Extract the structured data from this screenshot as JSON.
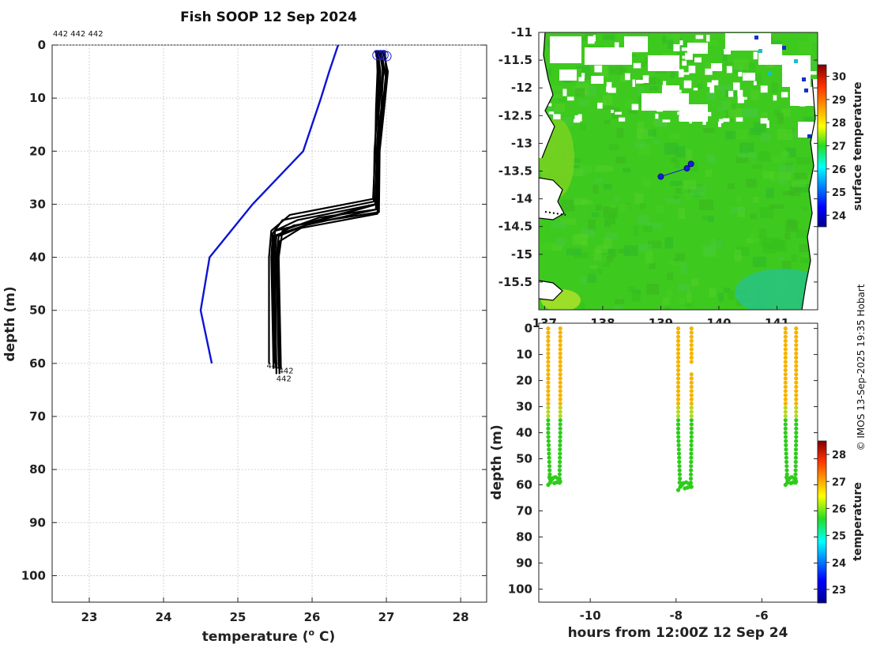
{
  "title": "Fish SOOP 12 Sep 2024",
  "profile_ids_label": "442 442 442",
  "copyright": "© IMOS 13-Sep-2025 19:35 Hobart",
  "colors": {
    "climatology": "#0b14d6",
    "profiles": "#000000",
    "grid": "#c8c8c8",
    "marker": "#1a1ae0",
    "land_contour": "#000000",
    "cloud": "#ffffff"
  },
  "chart_data": [
    {
      "type": "line",
      "name": "profile-panel",
      "xlabel": "temperature (o C)",
      "xlabel_main": "temperature (",
      "xlabel_sup": "o",
      "xlabel_tail": " C)",
      "ylabel": "depth (m)",
      "xlim": [
        22.5,
        28.35
      ],
      "ylim": [
        0,
        105
      ],
      "y_reversed": true,
      "grid": true,
      "xticks": [
        "23",
        "24",
        "25",
        "26",
        "27",
        "28"
      ],
      "yticks": [
        "0",
        "10",
        "20",
        "30",
        "40",
        "50",
        "60",
        "70",
        "80",
        "90",
        "100"
      ],
      "series": [
        {
          "color": "#0b14d6",
          "role": "climatology",
          "x": [
            26.35,
            26.23,
            26.12,
            25.88,
            25.2,
            24.62,
            24.5,
            24.65
          ],
          "y": [
            0,
            5,
            10,
            20,
            30,
            40,
            50,
            60
          ]
        },
        {
          "color": "#000000",
          "x": [
            26.87,
            26.88,
            26.86,
            26.85,
            26.82,
            25.7,
            25.45,
            25.42,
            25.42
          ],
          "y": [
            1,
            5,
            12,
            20,
            29,
            32,
            35,
            40,
            60
          ]
        },
        {
          "color": "#000000",
          "x": [
            26.92,
            26.95,
            26.9,
            26.88,
            26.85,
            25.8,
            25.5,
            25.48,
            25.5
          ],
          "y": [
            1,
            5,
            12,
            20,
            30,
            33,
            35,
            40,
            60
          ]
        },
        {
          "color": "#000000",
          "x": [
            26.98,
            27.0,
            26.94,
            26.9,
            26.87,
            26.0,
            25.55,
            25.52,
            25.55
          ],
          "y": [
            1,
            6,
            12,
            20,
            30,
            33.5,
            36,
            40,
            61
          ]
        },
        {
          "color": "#000000",
          "x": [
            26.9,
            26.96,
            26.93,
            26.88,
            26.86,
            25.9,
            25.48,
            25.46,
            25.52
          ],
          "y": [
            1,
            5,
            12,
            20,
            31,
            34,
            36,
            40,
            61
          ]
        },
        {
          "color": "#000000",
          "x": [
            26.95,
            27.02,
            26.97,
            26.91,
            26.9,
            25.75,
            25.52,
            25.5,
            25.52
          ],
          "y": [
            1,
            5,
            12,
            20,
            31.5,
            34,
            36,
            40,
            62
          ]
        },
        {
          "color": "#000000",
          "x": [
            26.85,
            26.9,
            26.88,
            26.84,
            26.83,
            25.6,
            25.47,
            25.45,
            25.48
          ],
          "y": [
            1,
            4,
            12,
            20,
            29.5,
            33,
            35.5,
            40,
            61
          ]
        },
        {
          "color": "#000000",
          "x": [
            26.93,
            26.99,
            26.95,
            26.89,
            26.86,
            26.1,
            25.6,
            25.55,
            25.58
          ],
          "y": [
            1,
            6,
            12,
            20,
            31,
            32.5,
            35,
            40,
            61
          ]
        },
        {
          "color": "#000000",
          "x": [
            26.88,
            26.92,
            26.9,
            26.87,
            26.85,
            25.95,
            25.5,
            25.47,
            25.5
          ],
          "y": [
            1,
            5,
            12,
            20,
            30,
            33.5,
            35,
            40,
            60
          ]
        },
        {
          "color": "#000000",
          "x": [
            26.97,
            27.01,
            26.96,
            26.9,
            26.88,
            25.85,
            25.56,
            25.54,
            25.56
          ],
          "y": [
            1,
            5,
            12,
            20,
            31.8,
            34.5,
            37,
            40,
            62
          ]
        }
      ],
      "surface_markers": [
        {
          "x": 26.88,
          "y": 1
        },
        {
          "x": 26.92,
          "y": 1
        },
        {
          "x": 26.96,
          "y": 1
        },
        {
          "x": 27.0,
          "y": 1.2
        }
      ],
      "bottom_labels": [
        {
          "text": "442",
          "x": 25.42,
          "y": 60
        },
        {
          "text": "442",
          "x": 25.58,
          "y": 61
        },
        {
          "text": "442",
          "x": 25.55,
          "y": 62.5
        }
      ]
    },
    {
      "type": "heatmap",
      "name": "surface-temperature-map",
      "colorbar_label": "surface temperature",
      "xlim": [
        136.9,
        141.7
      ],
      "ylim": [
        -16.0,
        -11.0
      ],
      "xticks": [
        "137",
        "138",
        "139",
        "140",
        "141"
      ],
      "yticks": [
        "-11",
        "-11.5",
        "-12",
        "-12.5",
        "-13",
        "-13.5",
        "-14",
        "-14.5",
        "-15",
        "-15.5"
      ],
      "clim": [
        23.5,
        30.5
      ],
      "colorbar_ticks": [
        "24",
        "25",
        "26",
        "27",
        "28",
        "29",
        "30"
      ],
      "ship_track": [
        {
          "lon": 139.52,
          "lat": -13.37
        },
        {
          "lon": 139.45,
          "lat": -13.45
        },
        {
          "lon": 139.0,
          "lat": -13.6
        }
      ]
    },
    {
      "type": "scatter",
      "name": "depth-time-section",
      "xlabel": "hours from 12:00Z 12 Sep 24",
      "ylabel": "depth (m)",
      "xlim": [
        -11.2,
        -4.7
      ],
      "ylim": [
        -2,
        105
      ],
      "y_reversed": true,
      "xticks": [
        "-10",
        "-8",
        "-6"
      ],
      "yticks": [
        "0",
        "10",
        "20",
        "30",
        "40",
        "50",
        "60",
        "70",
        "80",
        "90",
        "100"
      ],
      "colorbar_label": "temperature",
      "clim": [
        22.5,
        28.5
      ],
      "colorbar_ticks": [
        "23",
        "24",
        "25",
        "26",
        "27",
        "28"
      ],
      "casts": [
        {
          "t_down": -10.98,
          "t_up": -10.7,
          "bottom_depth": 60,
          "color_warm": "#f5b400",
          "color_cool": "#2ecc1a"
        },
        {
          "t_down": -7.95,
          "t_up": -7.64,
          "bottom_depth": 62,
          "color_warm": "#f5b400",
          "color_cool": "#2ecc1a"
        },
        {
          "t_down": -5.45,
          "t_up": -5.2,
          "bottom_depth": 60,
          "color_warm": "#f5b400",
          "color_cool": "#2ecc1a"
        }
      ]
    }
  ]
}
